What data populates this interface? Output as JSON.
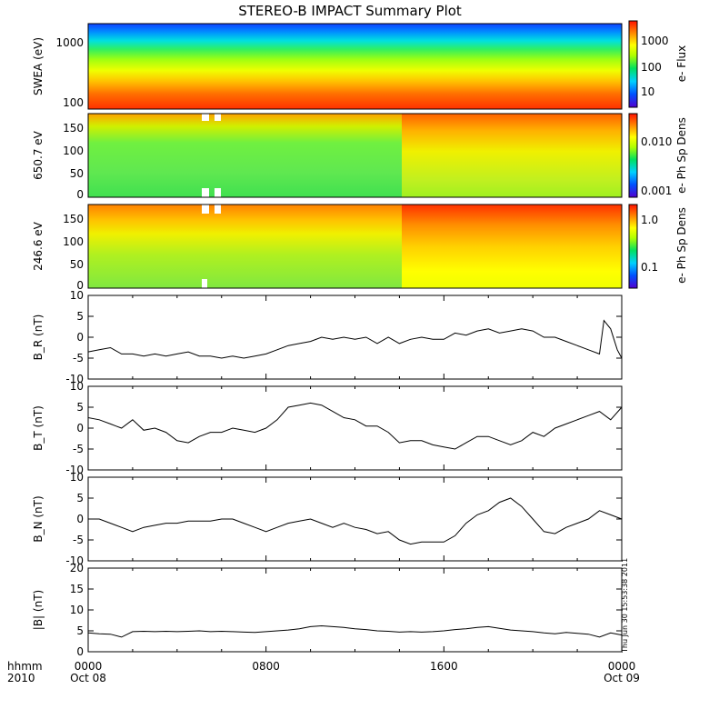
{
  "title": "STEREO-B IMPACT Summary Plot",
  "stamp": "Thu Jun 30 15:53:38 2011",
  "time_axis": {
    "label_lines": [
      "hhmm",
      "2010"
    ],
    "ticks": [
      {
        "hours": 0,
        "lines": [
          "0000",
          "Oct 08"
        ]
      },
      {
        "hours": 8,
        "lines": [
          "0800",
          ""
        ]
      },
      {
        "hours": 16,
        "lines": [
          "1600",
          ""
        ]
      },
      {
        "hours": 24,
        "lines": [
          "0000",
          "Oct 09"
        ]
      }
    ]
  },
  "chart_data": [
    {
      "type": "heatmap",
      "ylabel": "SWEA (eV)",
      "ylim": [
        100,
        2000
      ],
      "y_scale": "log",
      "y_ticks": [
        "1000",
        "100"
      ],
      "colorbar": {
        "label": "e- Flux",
        "scale": "log",
        "ticks": [
          "1000",
          "100",
          "10"
        ]
      },
      "note": "log flux vs energy; highest near 100 eV, falling to lowest above ~1500 eV"
    },
    {
      "type": "heatmap",
      "ylabel": "650.7 eV",
      "ylim": [
        0,
        180
      ],
      "y_ticks": [
        "150",
        "100",
        "50",
        "0"
      ],
      "colorbar": {
        "label": "e- Ph Sp Dens",
        "scale": "log",
        "ticks": [
          "0.010",
          "0.001"
        ]
      },
      "note": "pitch-angle distribution; enhanced (orange/red) near 180 deg after ~1300"
    },
    {
      "type": "heatmap",
      "ylabel": "246.6 eV",
      "ylim": [
        0,
        180
      ],
      "y_ticks": [
        "150",
        "100",
        "50",
        "0"
      ],
      "colorbar": {
        "label": "e- Ph Sp Dens",
        "scale": "log",
        "ticks": [
          "1.0",
          "0.1"
        ]
      },
      "note": "pitch-angle distribution; strongest near 180 deg around 1600-1900"
    },
    {
      "type": "line",
      "ylabel": "B_R (nT)",
      "ylim": [
        -10,
        10
      ],
      "y_ticks": [
        "10",
        "5",
        "0",
        "-5",
        "-10"
      ],
      "x": [
        0,
        0.5,
        1,
        1.5,
        2,
        2.5,
        3,
        3.5,
        4,
        4.5,
        5,
        5.5,
        6,
        6.5,
        7,
        7.5,
        8,
        8.5,
        9,
        9.5,
        10,
        10.5,
        11,
        11.5,
        12,
        12.5,
        13,
        13.5,
        14,
        14.5,
        15,
        15.5,
        16,
        16.5,
        17,
        17.5,
        18,
        18.5,
        19,
        19.5,
        20,
        20.5,
        21,
        21.5,
        22,
        22.5,
        23,
        23.2,
        23.5,
        23.8,
        24
      ],
      "values": [
        -3.5,
        -3,
        -2.5,
        -4,
        -4,
        -4.5,
        -4,
        -4.5,
        -4,
        -3.5,
        -4.5,
        -4.5,
        -5,
        -4.5,
        -5,
        -4.5,
        -4,
        -3,
        -2,
        -1.5,
        -1,
        0,
        -0.5,
        0,
        -0.5,
        0,
        -1.5,
        0,
        -1.5,
        -0.5,
        0,
        -0.5,
        -0.5,
        1,
        0.5,
        1.5,
        2,
        1,
        1.5,
        2,
        1.5,
        0,
        0,
        -1,
        -2,
        -3,
        -4,
        4,
        2,
        -3,
        -5
      ]
    },
    {
      "type": "line",
      "ylabel": "B_T (nT)",
      "ylim": [
        -10,
        10
      ],
      "y_ticks": [
        "10",
        "5",
        "0",
        "-5",
        "-10"
      ],
      "x": [
        0,
        0.5,
        1,
        1.5,
        2,
        2.5,
        3,
        3.5,
        4,
        4.5,
        5,
        5.5,
        6,
        6.5,
        7,
        7.5,
        8,
        8.5,
        9,
        9.5,
        10,
        10.5,
        11,
        11.5,
        12,
        12.5,
        13,
        13.5,
        14,
        14.5,
        15,
        15.5,
        16,
        16.5,
        17,
        17.5,
        18,
        18.5,
        19,
        19.5,
        20,
        20.5,
        21,
        21.5,
        22,
        22.5,
        23,
        23.5,
        24
      ],
      "values": [
        2.5,
        2,
        1,
        0,
        2,
        -0.5,
        0,
        -1,
        -3,
        -3.5,
        -2,
        -1,
        -1,
        0,
        -0.5,
        -1,
        0,
        2,
        5,
        5.5,
        6,
        5.5,
        4,
        2.5,
        2,
        0.5,
        0.5,
        -1,
        -3.5,
        -3,
        -3,
        -4,
        -4.5,
        -5,
        -3.5,
        -2,
        -2,
        -3,
        -4,
        -3,
        -1,
        -2,
        0,
        1,
        2,
        3,
        4,
        2,
        5
      ]
    },
    {
      "type": "line",
      "ylabel": "B_N (nT)",
      "ylim": [
        -10,
        10
      ],
      "y_ticks": [
        "10",
        "5",
        "0",
        "-5",
        "-10"
      ],
      "x": [
        0,
        0.5,
        1,
        1.5,
        2,
        2.5,
        3,
        3.5,
        4,
        4.5,
        5,
        5.5,
        6,
        6.5,
        7,
        7.5,
        8,
        8.5,
        9,
        9.5,
        10,
        10.5,
        11,
        11.5,
        12,
        12.5,
        13,
        13.5,
        14,
        14.5,
        15,
        15.5,
        16,
        16.5,
        17,
        17.5,
        18,
        18.5,
        19,
        19.5,
        20,
        20.5,
        21,
        21.5,
        22,
        22.5,
        23,
        23.5,
        24
      ],
      "values": [
        0,
        0,
        -1,
        -2,
        -3,
        -2,
        -1.5,
        -1,
        -1,
        -0.5,
        -0.5,
        -0.5,
        0,
        0,
        -1,
        -2,
        -3,
        -2,
        -1,
        -0.5,
        0,
        -1,
        -2,
        -1,
        -2,
        -2.5,
        -3.5,
        -3,
        -5,
        -6,
        -5.5,
        -5.5,
        -5.5,
        -4,
        -1,
        1,
        2,
        4,
        5,
        3,
        0,
        -3,
        -3.5,
        -2,
        -1,
        0,
        2,
        1,
        0
      ]
    },
    {
      "type": "line",
      "ylabel": "|B| (nT)",
      "ylim": [
        0,
        20
      ],
      "y_ticks": [
        "20",
        "15",
        "10",
        "5",
        "0"
      ],
      "x": [
        0,
        0.5,
        1,
        1.5,
        2,
        2.5,
        3,
        3.5,
        4,
        4.5,
        5,
        5.5,
        6,
        6.5,
        7,
        7.5,
        8,
        8.5,
        9,
        9.5,
        10,
        10.5,
        11,
        11.5,
        12,
        12.5,
        13,
        13.5,
        14,
        14.5,
        15,
        15.5,
        16,
        16.5,
        17,
        17.5,
        18,
        18.5,
        19,
        19.5,
        20,
        20.5,
        21,
        21.5,
        22,
        22.5,
        23,
        23.5,
        24
      ],
      "values": [
        4.5,
        4.3,
        4.2,
        3.5,
        4.8,
        4.9,
        4.8,
        4.9,
        4.8,
        4.9,
        5,
        4.8,
        4.9,
        4.8,
        4.7,
        4.6,
        4.8,
        5,
        5.2,
        5.5,
        6,
        6.2,
        6,
        5.8,
        5.5,
        5.3,
        5,
        4.9,
        4.7,
        4.8,
        4.7,
        4.8,
        5,
        5.3,
        5.5,
        5.8,
        6,
        5.6,
        5.2,
        5,
        4.8,
        4.5,
        4.3,
        4.6,
        4.4,
        4.2,
        3.5,
        4.5,
        4
      ]
    }
  ]
}
